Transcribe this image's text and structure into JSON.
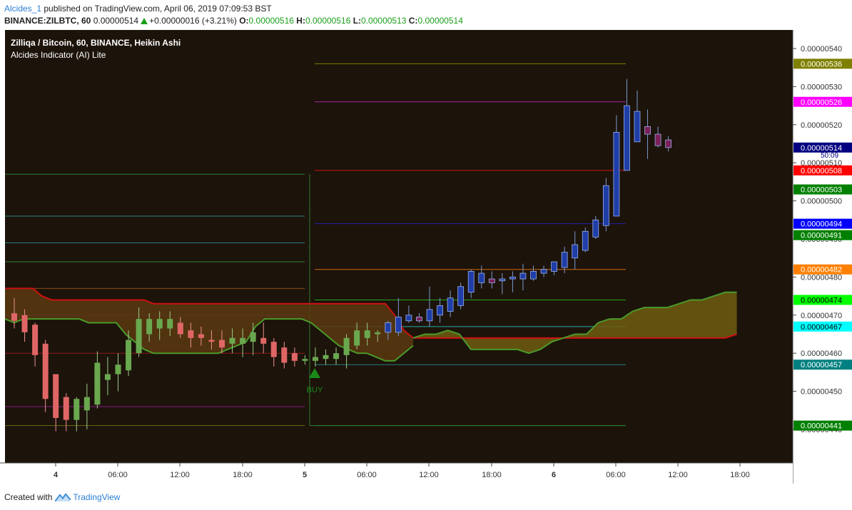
{
  "header": {
    "author": "Alcides_1",
    "published_text": "published on TradingView.com, April 06, 2019 07:09:53 BST",
    "symbol": "BINANCE:ZILBTC, 60",
    "last_price": "0.00000514",
    "change": "+0.00000016 (+3.21%)",
    "o_label": "O:",
    "o_value": "0.00000516",
    "h_label": "H:",
    "h_value": "0.00000516",
    "l_label": "L:",
    "l_value": "0.00000513",
    "c_label": "C:",
    "c_value": "0.00000514"
  },
  "legend": {
    "title": "Zilliqa / Bitcoin, 60, BINANCE, Heikin Ashi",
    "indicator": "Alcides Indicator (AI) Lite"
  },
  "footer": {
    "created_with": "Created with",
    "brand": "TradingView"
  },
  "colors": {
    "background": "#1c130a",
    "bull_candle": "#6aa84f",
    "bear_candle": "#e06666",
    "bull_candle_late": "#1f3ea8",
    "bear_candle_late": "#7a1f5a",
    "cloud_fill": "#5a3a10",
    "cloud_top": "#cc1111",
    "cloud_bottom": "#4a9a2a",
    "cloud_late_fill": "#6b5a10",
    "buy_signal": "#1a8a1a"
  },
  "chart_data": {
    "type": "candlestick",
    "chart_style": "Heikin Ashi",
    "y_axis": {
      "ylim": [
        4.375e-06,
        5.415e-06
      ],
      "tick_labels": [
        "0.00000540",
        "0.00000530",
        "0.00000520",
        "0.00000510",
        "0.00000500",
        "0.00000490",
        "0.00000480",
        "0.00000470",
        "0.00000460",
        "0.00000450",
        "0.00000440"
      ],
      "tick_values": [
        5.4e-06,
        5.3e-06,
        5.2e-06,
        5.1e-06,
        5e-06,
        4.9e-06,
        4.8e-06,
        4.7e-06,
        4.6e-06,
        4.5e-06,
        4.4e-06
      ]
    },
    "x_axis": {
      "tick_labels": [
        "4",
        "06:00",
        "12:00",
        "18:00",
        "5",
        "06:00",
        "12:00",
        "18:00",
        "6",
        "06:00",
        "12:00",
        "18:00"
      ],
      "bold_ticks": [
        "4",
        "5",
        "6"
      ]
    },
    "price_labels": [
      {
        "text": "0.00000536",
        "value": 5.36e-06,
        "bg": "#808000",
        "fg": "#ffffff"
      },
      {
        "text": "0.00000526",
        "value": 5.26e-06,
        "bg": "#ff00ff",
        "fg": "#ffffff"
      },
      {
        "text": "0.00000514",
        "value": 5.14e-06,
        "bg": "#000080",
        "fg": "#ffffff"
      },
      {
        "text": "0.00000508",
        "value": 5.08e-06,
        "bg": "#ff0000",
        "fg": "#ffffff"
      },
      {
        "text": "0.00000503",
        "value": 5.03e-06,
        "bg": "#008000",
        "fg": "#ffffff"
      },
      {
        "text": "0.00000494",
        "value": 4.94e-06,
        "bg": "#0000ff",
        "fg": "#ffffff"
      },
      {
        "text": "0.00000491",
        "value": 4.91e-06,
        "bg": "#008000",
        "fg": "#ffffff"
      },
      {
        "text": "0.00000482",
        "value": 4.82e-06,
        "bg": "#ff8000",
        "fg": "#ffffff"
      },
      {
        "text": "0.00000474",
        "value": 4.74e-06,
        "bg": "#00ff00",
        "fg": "#000000"
      },
      {
        "text": "0.00000467",
        "value": 4.67e-06,
        "bg": "#00ffff",
        "fg": "#000000"
      },
      {
        "text": "0.00000457",
        "value": 4.57e-06,
        "bg": "#008080",
        "fg": "#ffffff"
      },
      {
        "text": "0.00000441",
        "value": 4.41e-06,
        "bg": "#008000",
        "fg": "#ffffff"
      }
    ],
    "countdown": "50:09",
    "signal_label": "BUY",
    "candles": [
      {
        "o": 4.705e-06,
        "h": 4.745e-06,
        "l": 4.665e-06,
        "c": 4.685e-06
      },
      {
        "o": 4.7e-06,
        "h": 4.715e-06,
        "l": 4.63e-06,
        "c": 4.655e-06
      },
      {
        "o": 4.675e-06,
        "h": 4.68e-06,
        "l": 4.565e-06,
        "c": 4.595e-06
      },
      {
        "o": 4.625e-06,
        "h": 4.635e-06,
        "l": 4.445e-06,
        "c": 4.48e-06
      },
      {
        "o": 4.545e-06,
        "h": 4.545e-06,
        "l": 4.395e-06,
        "c": 4.43e-06
      },
      {
        "o": 4.485e-06,
        "h": 4.495e-06,
        "l": 4.395e-06,
        "c": 4.425e-06
      },
      {
        "o": 4.425e-06,
        "h": 4.485e-06,
        "l": 4.395e-06,
        "c": 4.48e-06
      },
      {
        "o": 4.45e-06,
        "h": 4.52e-06,
        "l": 4.4e-06,
        "c": 4.485e-06
      },
      {
        "o": 4.465e-06,
        "h": 4.605e-06,
        "l": 4.455e-06,
        "c": 4.575e-06
      },
      {
        "o": 4.53e-06,
        "h": 4.59e-06,
        "l": 4.49e-06,
        "c": 4.545e-06
      },
      {
        "o": 4.545e-06,
        "h": 4.6e-06,
        "l": 4.5e-06,
        "c": 4.57e-06
      },
      {
        "o": 4.555e-06,
        "h": 4.66e-06,
        "l": 4.54e-06,
        "c": 4.635e-06
      },
      {
        "o": 4.6e-06,
        "h": 4.72e-06,
        "l": 4.59e-06,
        "c": 4.69e-06
      },
      {
        "o": 4.65e-06,
        "h": 4.705e-06,
        "l": 4.63e-06,
        "c": 4.69e-06
      },
      {
        "o": 4.665e-06,
        "h": 4.71e-06,
        "l": 4.635e-06,
        "c": 4.69e-06
      },
      {
        "o": 4.665e-06,
        "h": 4.71e-06,
        "l": 4.645e-06,
        "c": 4.69e-06
      },
      {
        "o": 4.68e-06,
        "h": 4.695e-06,
        "l": 4.64e-06,
        "c": 4.65e-06
      },
      {
        "o": 4.66e-06,
        "h": 4.68e-06,
        "l": 4.615e-06,
        "c": 4.64e-06
      },
      {
        "o": 4.65e-06,
        "h": 4.67e-06,
        "l": 4.62e-06,
        "c": 4.64e-06
      },
      {
        "o": 4.635e-06,
        "h": 4.66e-06,
        "l": 4.61e-06,
        "c": 4.63e-06
      },
      {
        "o": 4.635e-06,
        "h": 4.66e-06,
        "l": 4.6e-06,
        "c": 4.615e-06
      },
      {
        "o": 4.625e-06,
        "h": 4.665e-06,
        "l": 4.6e-06,
        "c": 4.64e-06
      },
      {
        "o": 4.625e-06,
        "h": 4.665e-06,
        "l": 4.59e-06,
        "c": 4.64e-06
      },
      {
        "o": 4.63e-06,
        "h": 4.68e-06,
        "l": 4.595e-06,
        "c": 4.655e-06
      },
      {
        "o": 4.64e-06,
        "h": 4.68e-06,
        "l": 4.6e-06,
        "c": 4.625e-06
      },
      {
        "o": 4.63e-06,
        "h": 4.64e-06,
        "l": 4.565e-06,
        "c": 4.59e-06
      },
      {
        "o": 4.615e-06,
        "h": 4.63e-06,
        "l": 4.56e-06,
        "c": 4.575e-06
      },
      {
        "o": 4.6e-06,
        "h": 4.615e-06,
        "l": 4.565e-06,
        "c": 4.58e-06
      },
      {
        "o": 4.58e-06,
        "h": 4.595e-06,
        "l": 4.57e-06,
        "c": 4.585e-06
      },
      {
        "o": 4.58e-06,
        "h": 4.615e-06,
        "l": 4.565e-06,
        "c": 4.59e-06
      },
      {
        "o": 4.585e-06,
        "h": 4.61e-06,
        "l": 4.57e-06,
        "c": 4.595e-06
      },
      {
        "o": 4.585e-06,
        "h": 4.615e-06,
        "l": 4.57e-06,
        "c": 4.6e-06
      },
      {
        "o": 4.595e-06,
        "h": 4.65e-06,
        "l": 4.56e-06,
        "c": 4.64e-06
      },
      {
        "o": 4.62e-06,
        "h": 4.68e-06,
        "l": 4.61e-06,
        "c": 4.66e-06
      },
      {
        "o": 4.64e-06,
        "h": 4.68e-06,
        "l": 4.62e-06,
        "c": 4.66e-06
      },
      {
        "o": 4.65e-06,
        "h": 4.66e-06,
        "l": 4.63e-06,
        "c": 4.655e-06
      },
      {
        "o": 4.655e-06,
        "h": 4.685e-06,
        "l": 4.635e-06,
        "c": 4.68e-06
      },
      {
        "o": 4.655e-06,
        "h": 4.745e-06,
        "l": 4.645e-06,
        "c": 4.695e-06
      },
      {
        "o": 4.685e-06,
        "h": 4.725e-06,
        "l": 4.68e-06,
        "c": 4.7e-06
      },
      {
        "o": 4.695e-06,
        "h": 4.705e-06,
        "l": 4.68e-06,
        "c": 4.685e-06
      },
      {
        "o": 4.685e-06,
        "h": 4.775e-06,
        "l": 4.67e-06,
        "c": 4.715e-06
      },
      {
        "o": 4.7e-06,
        "h": 4.745e-06,
        "l": 4.68e-06,
        "c": 4.725e-06
      },
      {
        "o": 4.71e-06,
        "h": 4.765e-06,
        "l": 4.695e-06,
        "c": 4.745e-06
      },
      {
        "o": 4.725e-06,
        "h": 4.785e-06,
        "l": 4.715e-06,
        "c": 4.775e-06
      },
      {
        "o": 4.76e-06,
        "h": 4.82e-06,
        "l": 4.745e-06,
        "c": 4.815e-06
      },
      {
        "o": 4.785e-06,
        "h": 4.83e-06,
        "l": 4.77e-06,
        "c": 4.81e-06
      },
      {
        "o": 4.795e-06,
        "h": 4.815e-06,
        "l": 4.77e-06,
        "c": 4.785e-06
      },
      {
        "o": 4.79e-06,
        "h": 4.81e-06,
        "l": 4.755e-06,
        "c": 4.795e-06
      },
      {
        "o": 4.795e-06,
        "h": 4.815e-06,
        "l": 4.76e-06,
        "c": 4.8e-06
      },
      {
        "o": 4.795e-06,
        "h": 4.835e-06,
        "l": 4.765e-06,
        "c": 4.81e-06
      },
      {
        "o": 4.795e-06,
        "h": 4.83e-06,
        "l": 4.79e-06,
        "c": 4.815e-06
      },
      {
        "o": 4.81e-06,
        "h": 4.83e-06,
        "l": 4.8e-06,
        "c": 4.82e-06
      },
      {
        "o": 4.815e-06,
        "h": 4.835e-06,
        "l": 4.805e-06,
        "c": 4.84e-06
      },
      {
        "o": 4.825e-06,
        "h": 4.88e-06,
        "l": 4.81e-06,
        "c": 4.865e-06
      },
      {
        "o": 4.85e-06,
        "h": 4.92e-06,
        "l": 4.82e-06,
        "c": 4.885e-06
      },
      {
        "o": 4.87e-06,
        "h": 4.93e-06,
        "l": 4.865e-06,
        "c": 4.92e-06
      },
      {
        "o": 4.905e-06,
        "h": 4.96e-06,
        "l": 4.9e-06,
        "c": 4.95e-06
      },
      {
        "o": 4.935e-06,
        "h": 5.06e-06,
        "l": 4.92e-06,
        "c": 5.04e-06
      },
      {
        "o": 4.96e-06,
        "h": 5.225e-06,
        "l": 4.96e-06,
        "c": 5.18e-06
      },
      {
        "o": 5.08e-06,
        "h": 5.32e-06,
        "l": 5.08e-06,
        "c": 5.25e-06
      },
      {
        "o": 5.155e-06,
        "h": 5.29e-06,
        "l": 5.155e-06,
        "c": 5.235e-06
      },
      {
        "o": 5.195e-06,
        "h": 5.24e-06,
        "l": 5.11e-06,
        "c": 5.175e-06
      },
      {
        "o": 5.175e-06,
        "h": 5.195e-06,
        "l": 5.14e-06,
        "c": 5.145e-06
      },
      {
        "o": 5.16e-06,
        "h": 5.17e-06,
        "l": 5.13e-06,
        "c": 5.14e-06
      }
    ],
    "levels": [
      {
        "value": 5.07e-06,
        "color": "#2e7d32",
        "x_from": 0,
        "x_to": 1,
        "segment": "left-top"
      },
      {
        "value": 4.96e-06,
        "color": "#2a8080",
        "x_from": 0,
        "x_to": 1,
        "segment": "left"
      },
      {
        "value": 4.89e-06,
        "color": "#2a8080",
        "x_from": 0,
        "x_to": 1,
        "segment": "left"
      },
      {
        "value": 4.84e-06,
        "color": "#2e7d32",
        "x_from": 0,
        "x_to": 1,
        "segment": "left"
      },
      {
        "value": 4.77e-06,
        "color": "#8a4a1a",
        "x_from": 0,
        "x_to": 1,
        "segment": "left"
      },
      {
        "value": 4.7e-06,
        "color": "#6a2a8a",
        "x_from": 0,
        "x_to": 1,
        "segment": "left"
      },
      {
        "value": 4.6e-06,
        "color": "#8a1a1a",
        "x_from": 0,
        "x_to": 1,
        "segment": "left"
      },
      {
        "value": 4.46e-06,
        "color": "#8a1a8a",
        "x_from": 0,
        "x_to": 1,
        "segment": "left"
      },
      {
        "value": 4.41e-06,
        "color": "#6a6a10",
        "x_from": 0,
        "x_to": 1,
        "segment": "left"
      },
      {
        "value": 5.36e-06,
        "color": "#808000",
        "segment": "right"
      },
      {
        "value": 5.26e-06,
        "color": "#aa22aa",
        "segment": "right"
      },
      {
        "value": 5.08e-06,
        "color": "#cc1111",
        "segment": "right"
      },
      {
        "value": 4.94e-06,
        "color": "#2222aa",
        "segment": "right"
      },
      {
        "value": 4.82e-06,
        "color": "#cc6a10",
        "segment": "right"
      },
      {
        "value": 4.74e-06,
        "color": "#22aa22",
        "segment": "right"
      },
      {
        "value": 4.67e-06,
        "color": "#22aaaa",
        "segment": "right"
      },
      {
        "value": 4.57e-06,
        "color": "#228080",
        "segment": "right"
      },
      {
        "value": 4.41e-06,
        "color": "#228822",
        "segment": "right"
      }
    ],
    "cloud_top": [
      4.77e-06,
      4.77e-06,
      4.77e-06,
      4.77e-06,
      4.75e-06,
      4.74e-06,
      4.74e-06,
      4.74e-06,
      4.74e-06,
      4.74e-06,
      4.74e-06,
      4.74e-06,
      4.74e-06,
      4.74e-06,
      4.74e-06,
      4.74e-06,
      4.73e-06,
      4.73e-06,
      4.73e-06,
      4.73e-06,
      4.73e-06,
      4.73e-06,
      4.73e-06,
      4.73e-06,
      4.73e-06,
      4.73e-06,
      4.73e-06,
      4.73e-06,
      4.73e-06,
      4.73e-06,
      4.73e-06,
      4.73e-06,
      4.73e-06,
      4.73e-06,
      4.73e-06,
      4.73e-06,
      4.73e-06,
      4.73e-06,
      4.73e-06,
      4.73e-06,
      4.73e-06,
      4.73e-06,
      4.7e-06,
      4.66e-06,
      4.64e-06
    ],
    "cloud_bottom": [
      4.69e-06,
      4.68e-06,
      4.69e-06,
      4.69e-06,
      4.69e-06,
      4.69e-06,
      4.69e-06,
      4.69e-06,
      4.69e-06,
      4.68e-06,
      4.68e-06,
      4.68e-06,
      4.68e-06,
      4.65e-06,
      4.63e-06,
      4.61e-06,
      4.6e-06,
      4.6e-06,
      4.6e-06,
      4.6e-06,
      4.6e-06,
      4.6e-06,
      4.6e-06,
      4.6e-06,
      4.61e-06,
      4.62e-06,
      4.63e-06,
      4.67e-06,
      4.69e-06,
      4.69e-06,
      4.69e-06,
      4.69e-06,
      4.69e-06,
      4.68e-06,
      4.66e-06,
      4.64e-06,
      4.62e-06,
      4.61e-06,
      4.6e-06,
      4.6e-06,
      4.59e-06,
      4.58e-06,
      4.58e-06,
      4.6e-06,
      4.62e-06
    ],
    "future_cloud_top": [
      4.64e-06,
      4.64e-06,
      4.64e-06,
      4.64e-06,
      4.64e-06,
      4.64e-06,
      4.64e-06,
      4.64e-06,
      4.64e-06,
      4.64e-06,
      4.64e-06,
      4.64e-06,
      4.64e-06,
      4.64e-06,
      4.64e-06,
      4.64e-06,
      4.64e-06,
      4.64e-06,
      4.64e-06,
      4.64e-06,
      4.64e-06,
      4.64e-06,
      4.64e-06,
      4.64e-06,
      4.64e-06,
      4.64e-06,
      4.64e-06,
      4.64e-06,
      4.65e-06
    ],
    "future_cloud_bottom": [
      4.64e-06,
      4.65e-06,
      4.65e-06,
      4.66e-06,
      4.65e-06,
      4.61e-06,
      4.61e-06,
      4.61e-06,
      4.61e-06,
      4.61e-06,
      4.6e-06,
      4.61e-06,
      4.63e-06,
      4.64e-06,
      4.65e-06,
      4.65e-06,
      4.68e-06,
      4.69e-06,
      4.69e-06,
      4.71e-06,
      4.72e-06,
      4.72e-06,
      4.72e-06,
      4.73e-06,
      4.74e-06,
      4.74e-06,
      4.75e-06,
      4.76e-06,
      4.76e-06
    ]
  }
}
